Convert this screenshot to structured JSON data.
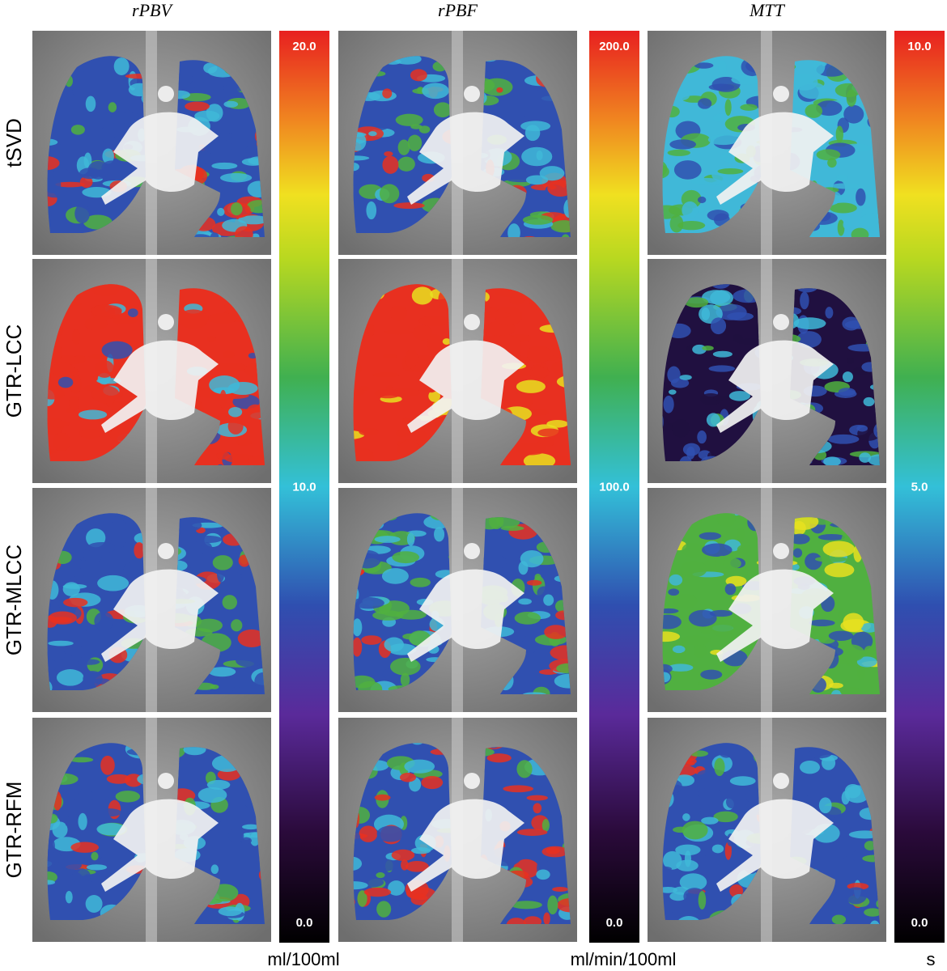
{
  "column_titles": [
    "rPBV",
    "rPBF",
    "MTT"
  ],
  "row_labels": [
    "tSVD",
    "GTR-LCC",
    "GTR-MLCC",
    "GTR-RFM"
  ],
  "colorbars": [
    {
      "max": "20.0",
      "mid": "10.0",
      "min": "0.0",
      "unit": "ml/100ml"
    },
    {
      "max": "200.0",
      "mid": "100.0",
      "min": "0.0",
      "unit": "ml/min/100ml"
    },
    {
      "max": "10.0",
      "mid": "5.0",
      "min": "0.0",
      "unit": "s"
    }
  ]
}
